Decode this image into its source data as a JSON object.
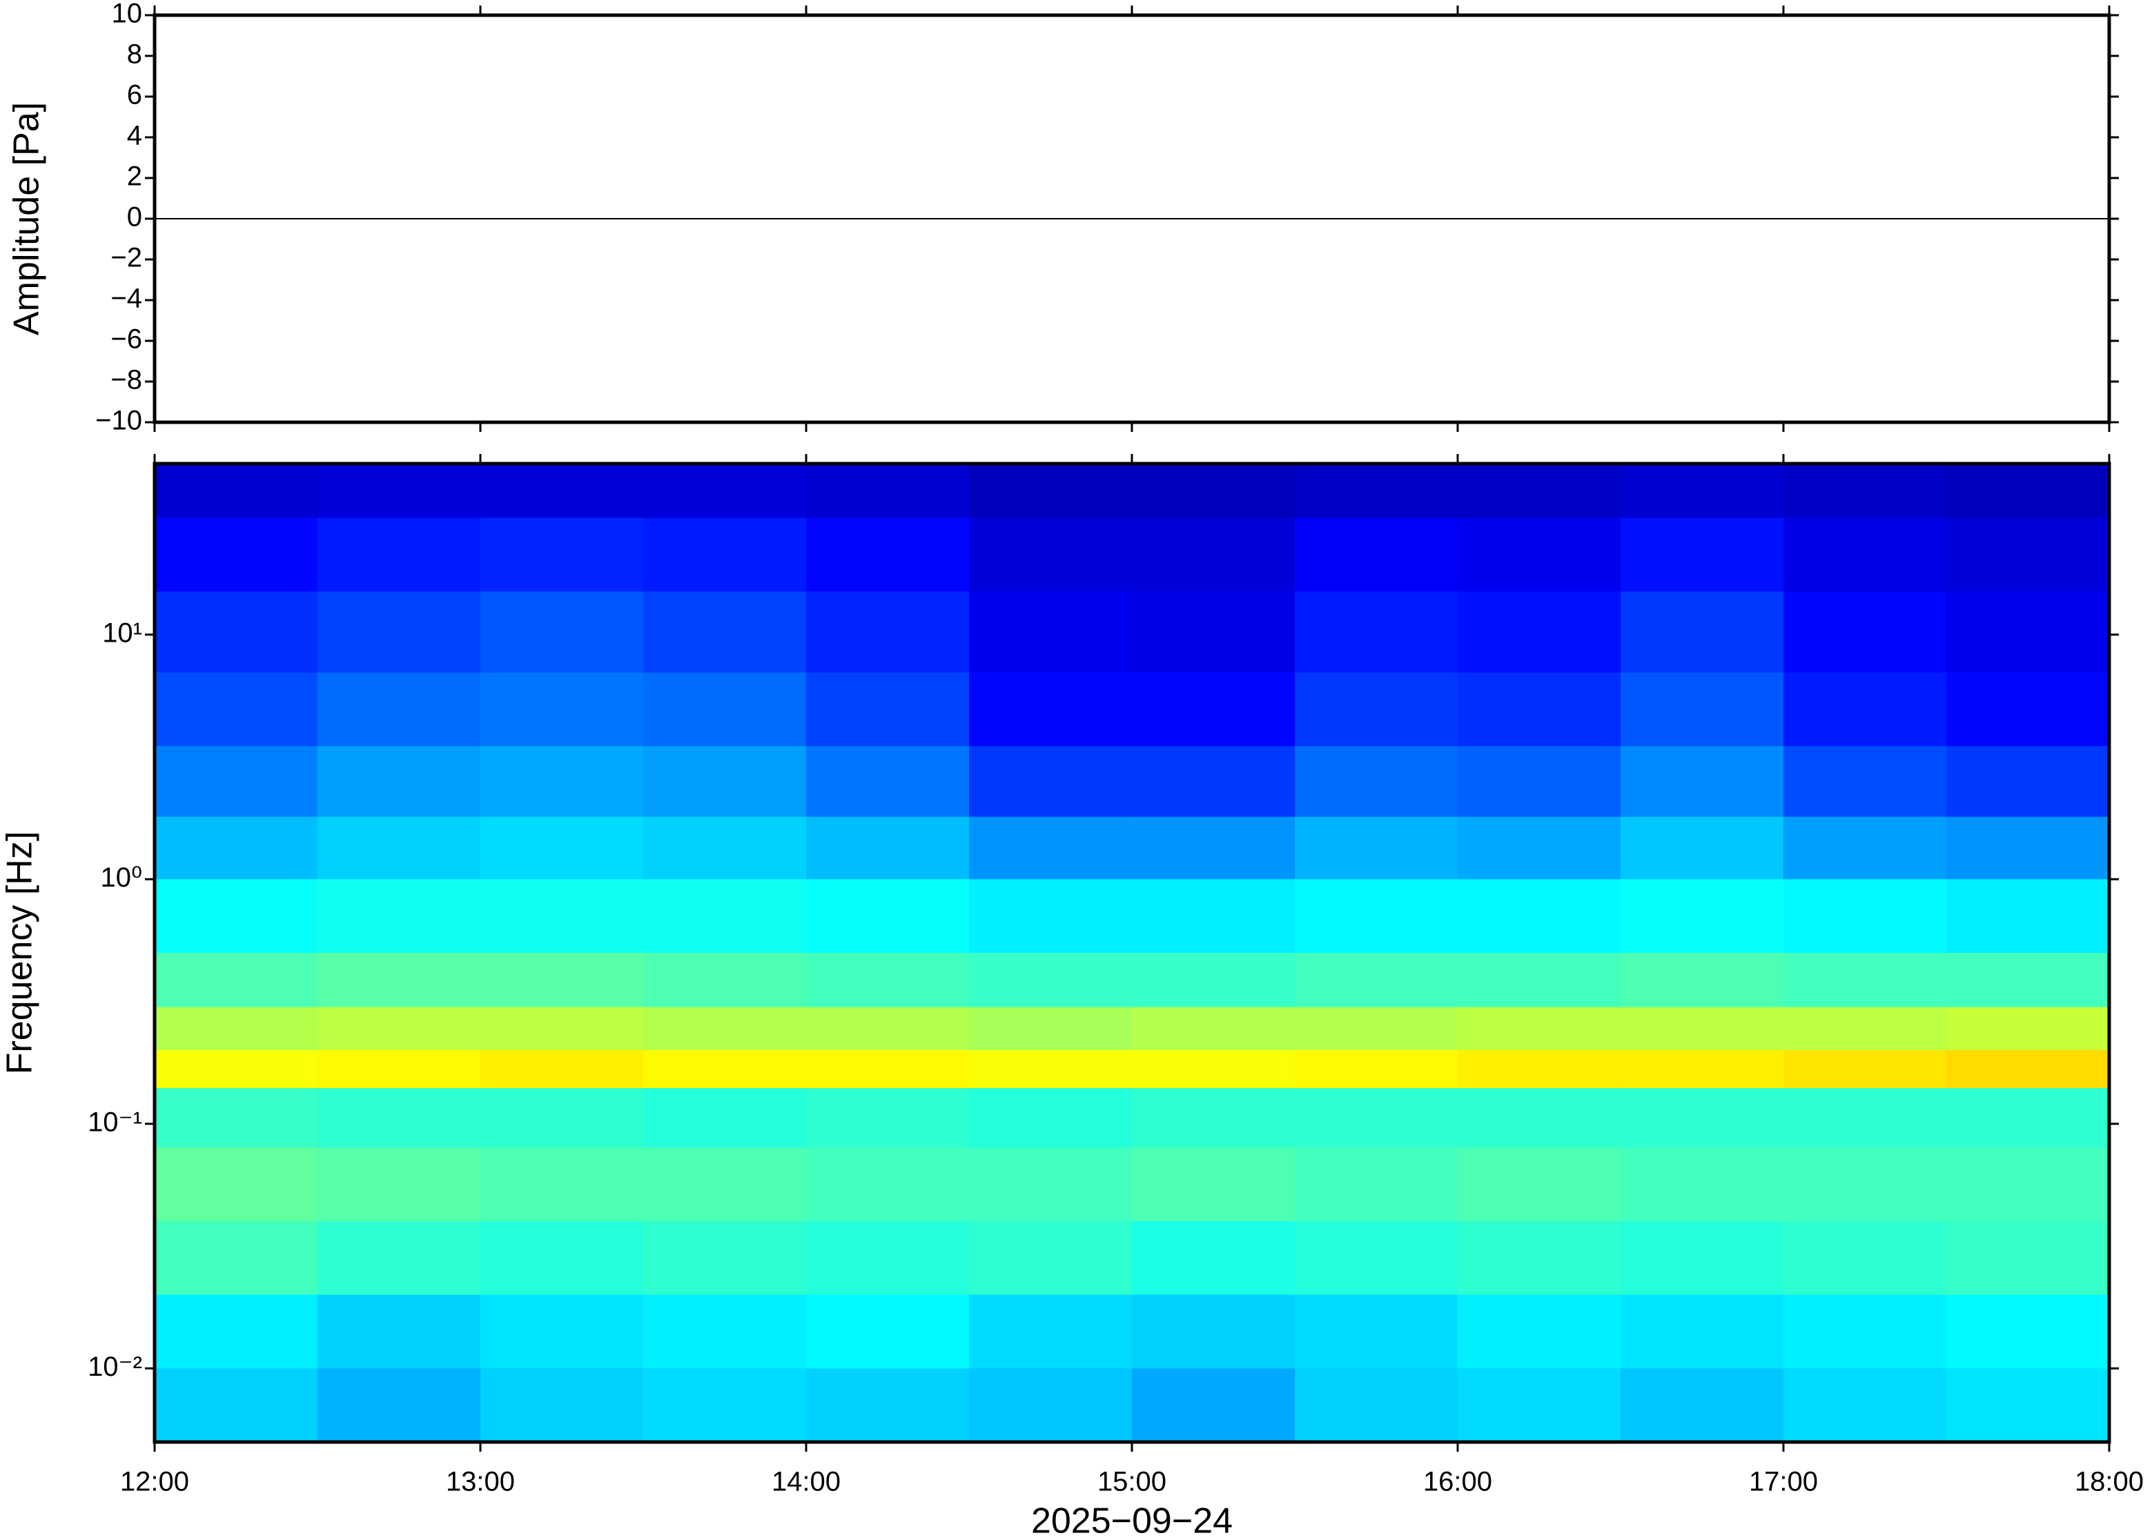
{
  "chart_data": [
    {
      "type": "line",
      "ylabel": "Amplitude [Pa]",
      "x": [
        "12:00",
        "18:00"
      ],
      "values": [
        0,
        0
      ],
      "color": "#000000",
      "xlim": [
        "12:00",
        "18:00"
      ],
      "xticks": [
        "12:00",
        "13:00",
        "14:00",
        "15:00",
        "16:00",
        "17:00",
        "18:00"
      ],
      "ylim": [
        -10,
        10
      ],
      "yticks": [
        {
          "value": -10,
          "label": "−10"
        },
        {
          "value": -8,
          "label": "−8"
        },
        {
          "value": -6,
          "label": "−6"
        },
        {
          "value": -4,
          "label": "−4"
        },
        {
          "value": -2,
          "label": "−2"
        },
        0,
        2,
        4,
        6,
        8,
        10
      ]
    },
    {
      "type": "heatmap",
      "ylabel": "Frequency [Hz]",
      "xlabel": "2025−09−24",
      "colormap": "jet",
      "log_y": true,
      "xlim": [
        "12:00",
        "18:00"
      ],
      "xticks": [
        "12:00",
        "13:00",
        "14:00",
        "15:00",
        "16:00",
        "17:00",
        "18:00"
      ],
      "ylim": [
        0.005,
        50
      ],
      "yticks": [
        {
          "value": 0.01,
          "label": "10⁻²"
        },
        {
          "value": 0.1,
          "label": "10⁻¹"
        },
        {
          "value": 1,
          "label": "10⁰"
        },
        {
          "value": 10,
          "label": "10¹"
        }
      ],
      "xbins": [
        "12:00",
        "12:30",
        "13:00",
        "13:30",
        "14:00",
        "14:30",
        "15:00",
        "15:30",
        "16:00",
        "16:30",
        "17:00",
        "17:30",
        "18:00"
      ],
      "ybins": [
        50,
        30,
        15,
        7,
        3.5,
        1.8,
        1,
        0.5,
        0.3,
        0.2,
        0.14,
        0.08,
        0.04,
        0.02,
        0.01,
        0.005
      ],
      "z": [
        [
          0.08,
          0.09,
          0.09,
          0.09,
          0.08,
          0.06,
          0.06,
          0.07,
          0.07,
          0.08,
          0.07,
          0.06
        ],
        [
          0.13,
          0.15,
          0.16,
          0.15,
          0.13,
          0.09,
          0.09,
          0.12,
          0.11,
          0.14,
          0.1,
          0.09
        ],
        [
          0.17,
          0.19,
          0.21,
          0.19,
          0.16,
          0.11,
          0.1,
          0.15,
          0.14,
          0.18,
          0.13,
          0.11
        ],
        [
          0.2,
          0.23,
          0.24,
          0.23,
          0.19,
          0.13,
          0.13,
          0.18,
          0.17,
          0.21,
          0.15,
          0.13
        ],
        [
          0.25,
          0.28,
          0.29,
          0.28,
          0.24,
          0.18,
          0.18,
          0.23,
          0.22,
          0.26,
          0.2,
          0.18
        ],
        [
          0.31,
          0.33,
          0.34,
          0.33,
          0.31,
          0.27,
          0.27,
          0.3,
          0.29,
          0.32,
          0.28,
          0.27
        ],
        [
          0.38,
          0.39,
          0.39,
          0.39,
          0.38,
          0.36,
          0.36,
          0.37,
          0.37,
          0.38,
          0.37,
          0.36
        ],
        [
          0.45,
          0.46,
          0.46,
          0.45,
          0.44,
          0.43,
          0.43,
          0.44,
          0.44,
          0.45,
          0.44,
          0.44
        ],
        [
          0.55,
          0.56,
          0.56,
          0.55,
          0.55,
          0.54,
          0.55,
          0.55,
          0.56,
          0.56,
          0.56,
          0.57
        ],
        [
          0.62,
          0.63,
          0.64,
          0.63,
          0.63,
          0.62,
          0.62,
          0.63,
          0.64,
          0.64,
          0.65,
          0.66
        ],
        [
          0.43,
          0.42,
          0.42,
          0.41,
          0.42,
          0.41,
          0.42,
          0.42,
          0.42,
          0.42,
          0.42,
          0.42
        ],
        [
          0.47,
          0.46,
          0.45,
          0.45,
          0.44,
          0.44,
          0.45,
          0.44,
          0.45,
          0.44,
          0.44,
          0.44
        ],
        [
          0.44,
          0.42,
          0.41,
          0.42,
          0.41,
          0.42,
          0.4,
          0.41,
          0.42,
          0.41,
          0.42,
          0.43
        ],
        [
          0.36,
          0.33,
          0.35,
          0.36,
          0.37,
          0.34,
          0.33,
          0.34,
          0.36,
          0.35,
          0.36,
          0.37
        ],
        [
          0.33,
          0.3,
          0.33,
          0.34,
          0.33,
          0.32,
          0.29,
          0.33,
          0.34,
          0.32,
          0.34,
          0.35
        ]
      ]
    }
  ]
}
